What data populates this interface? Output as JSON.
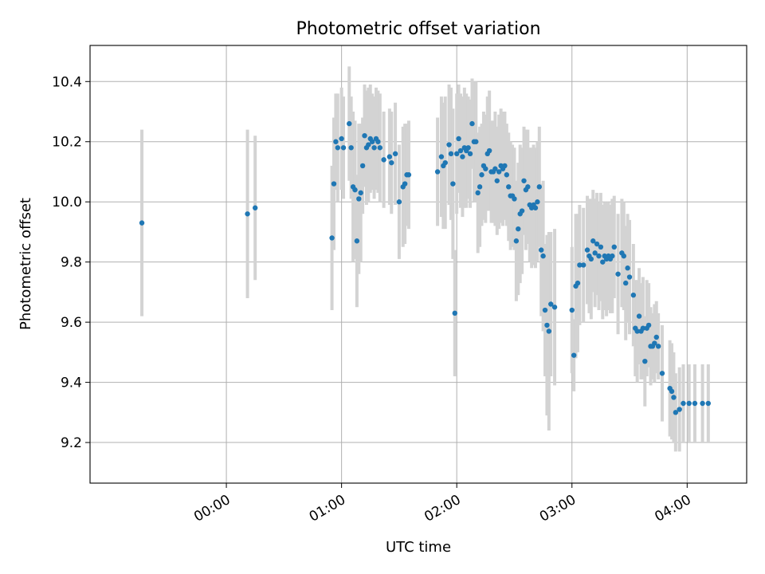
{
  "chart_data": {
    "type": "scatter",
    "title": "Photometric offset variation",
    "xlabel": "UTC time",
    "ylabel": "Photometric offset",
    "grid": true,
    "x_unit": "minutes after 00:00 UTC",
    "xlim": [
      -71,
      271
    ],
    "ylim": [
      9.065,
      10.52
    ],
    "xticks": [
      {
        "value": 0,
        "label": "00:00"
      },
      {
        "value": 60,
        "label": "01:00"
      },
      {
        "value": 120,
        "label": "02:00"
      },
      {
        "value": 180,
        "label": "03:00"
      },
      {
        "value": 240,
        "label": "04:00"
      }
    ],
    "yticks": [
      {
        "value": 9.2,
        "label": "9.2"
      },
      {
        "value": 9.4,
        "label": "9.4"
      },
      {
        "value": 9.6,
        "label": "9.6"
      },
      {
        "value": 9.8,
        "label": "9.8"
      },
      {
        "value": 10.0,
        "label": "10.0"
      },
      {
        "value": 10.2,
        "label": "10.2"
      },
      {
        "value": 10.4,
        "label": "10.4"
      }
    ],
    "series": [
      {
        "name": "offset",
        "color": "#1f77b4",
        "errorbar_color": "#d3d3d3",
        "points": [
          [
            -44,
            9.93,
            0.31
          ],
          [
            11,
            9.96,
            0.28
          ],
          [
            15,
            9.98,
            0.24
          ],
          [
            55,
            9.88,
            0.24
          ],
          [
            56,
            10.06,
            0.22
          ],
          [
            57,
            10.2,
            0.16
          ],
          [
            58,
            10.18,
            0.18
          ],
          [
            60,
            10.21,
            0.17
          ],
          [
            61,
            10.18,
            0.17
          ],
          [
            64,
            10.26,
            0.19
          ],
          [
            65,
            10.18,
            0.17
          ],
          [
            66,
            10.05,
            0.25
          ],
          [
            67,
            10.04,
            0.23
          ],
          [
            68,
            9.87,
            0.22
          ],
          [
            69,
            10.01,
            0.25
          ],
          [
            70,
            10.03,
            0.23
          ],
          [
            71,
            10.12,
            0.16
          ],
          [
            72,
            10.22,
            0.17
          ],
          [
            73,
            10.18,
            0.19
          ],
          [
            74,
            10.19,
            0.19
          ],
          [
            75,
            10.21,
            0.18
          ],
          [
            76,
            10.2,
            0.16
          ],
          [
            77,
            10.18,
            0.17
          ],
          [
            78,
            10.21,
            0.17
          ],
          [
            79,
            10.2,
            0.17
          ],
          [
            80,
            10.18,
            0.18
          ],
          [
            82,
            10.14,
            0.16
          ],
          [
            85,
            10.15,
            0.16
          ],
          [
            86,
            10.13,
            0.17
          ],
          [
            88,
            10.16,
            0.17
          ],
          [
            90,
            10.0,
            0.19
          ],
          [
            92,
            10.05,
            0.2
          ],
          [
            93,
            10.06,
            0.2
          ],
          [
            94,
            10.09,
            0.17
          ],
          [
            95,
            10.09,
            0.18
          ],
          [
            110,
            10.1,
            0.18
          ],
          [
            112,
            10.15,
            0.2
          ],
          [
            113,
            10.12,
            0.21
          ],
          [
            114,
            10.13,
            0.22
          ],
          [
            116,
            10.19,
            0.2
          ],
          [
            117,
            10.16,
            0.22
          ],
          [
            118,
            10.06,
            0.25
          ],
          [
            119,
            9.63,
            0.21
          ],
          [
            120,
            10.16,
            0.2
          ],
          [
            121,
            10.21,
            0.18
          ],
          [
            122,
            10.17,
            0.19
          ],
          [
            123,
            10.15,
            0.2
          ],
          [
            124,
            10.18,
            0.2
          ],
          [
            125,
            10.17,
            0.19
          ],
          [
            126,
            10.18,
            0.17
          ],
          [
            127,
            10.16,
            0.18
          ],
          [
            128,
            10.26,
            0.15
          ],
          [
            129,
            10.2,
            0.2
          ],
          [
            130,
            10.2,
            0.2
          ],
          [
            131,
            10.03,
            0.2
          ],
          [
            132,
            10.05,
            0.2
          ],
          [
            133,
            10.09,
            0.17
          ],
          [
            134,
            10.12,
            0.18
          ],
          [
            135,
            10.11,
            0.18
          ],
          [
            136,
            10.16,
            0.19
          ],
          [
            137,
            10.17,
            0.2
          ],
          [
            138,
            10.1,
            0.17
          ],
          [
            139,
            10.1,
            0.17
          ],
          [
            140,
            10.11,
            0.19
          ],
          [
            141,
            10.07,
            0.18
          ],
          [
            142,
            10.1,
            0.19
          ],
          [
            143,
            10.12,
            0.19
          ],
          [
            144,
            10.11,
            0.19
          ],
          [
            145,
            10.12,
            0.18
          ],
          [
            146,
            10.09,
            0.17
          ],
          [
            147,
            10.05,
            0.18
          ],
          [
            148,
            10.02,
            0.18
          ],
          [
            149,
            10.02,
            0.17
          ],
          [
            150,
            10.01,
            0.17
          ],
          [
            151,
            9.87,
            0.2
          ],
          [
            152,
            9.91,
            0.22
          ],
          [
            153,
            9.96,
            0.23
          ],
          [
            154,
            9.97,
            0.21
          ],
          [
            155,
            10.07,
            0.18
          ],
          [
            156,
            10.04,
            0.2
          ],
          [
            157,
            10.05,
            0.19
          ],
          [
            158,
            9.99,
            0.19
          ],
          [
            159,
            9.98,
            0.2
          ],
          [
            160,
            9.99,
            0.2
          ],
          [
            161,
            9.98,
            0.2
          ],
          [
            162,
            10.0,
            0.2
          ],
          [
            163,
            10.05,
            0.2
          ],
          [
            164,
            9.84,
            0.22
          ],
          [
            165,
            9.82,
            0.25
          ],
          [
            166,
            9.64,
            0.22
          ],
          [
            167,
            9.59,
            0.3
          ],
          [
            168,
            9.57,
            0.33
          ],
          [
            169,
            9.66,
            0.24
          ],
          [
            171,
            9.65,
            0.26
          ],
          [
            180,
            9.64,
            0.21
          ],
          [
            181,
            9.49,
            0.12
          ],
          [
            182,
            9.72,
            0.24
          ],
          [
            183,
            9.73,
            0.23
          ],
          [
            184,
            9.79,
            0.2
          ],
          [
            186,
            9.79,
            0.19
          ],
          [
            188,
            9.84,
            0.18
          ],
          [
            189,
            9.82,
            0.19
          ],
          [
            190,
            9.81,
            0.2
          ],
          [
            191,
            9.87,
            0.17
          ],
          [
            192,
            9.83,
            0.18
          ],
          [
            193,
            9.86,
            0.17
          ],
          [
            194,
            9.82,
            0.18
          ],
          [
            195,
            9.85,
            0.18
          ],
          [
            196,
            9.8,
            0.19
          ],
          [
            197,
            9.82,
            0.18
          ],
          [
            198,
            9.81,
            0.19
          ],
          [
            199,
            9.82,
            0.18
          ],
          [
            200,
            9.81,
            0.18
          ],
          [
            201,
            9.82,
            0.19
          ],
          [
            202,
            9.85,
            0.17
          ],
          [
            204,
            9.76,
            0.2
          ],
          [
            206,
            9.83,
            0.18
          ],
          [
            207,
            9.82,
            0.18
          ],
          [
            208,
            9.73,
            0.19
          ],
          [
            209,
            9.78,
            0.18
          ],
          [
            210,
            9.75,
            0.19
          ],
          [
            212,
            9.69,
            0.17
          ],
          [
            213,
            9.58,
            0.16
          ],
          [
            214,
            9.57,
            0.17
          ],
          [
            215,
            9.62,
            0.16
          ],
          [
            216,
            9.57,
            0.16
          ],
          [
            217,
            9.58,
            0.17
          ],
          [
            218,
            9.47,
            0.15
          ],
          [
            219,
            9.58,
            0.16
          ],
          [
            220,
            9.59,
            0.14
          ],
          [
            221,
            9.52,
            0.13
          ],
          [
            222,
            9.52,
            0.11
          ],
          [
            223,
            9.53,
            0.13
          ],
          [
            224,
            9.55,
            0.12
          ],
          [
            225,
            9.52,
            0.11
          ],
          [
            227,
            9.43,
            0.16
          ],
          [
            231,
            9.38,
            0.16
          ],
          [
            232,
            9.37,
            0.16
          ],
          [
            233,
            9.35,
            0.15
          ],
          [
            234,
            9.3,
            0.13
          ],
          [
            236,
            9.31,
            0.14
          ],
          [
            238,
            9.33,
            0.13
          ],
          [
            241,
            9.33,
            0.13
          ],
          [
            244,
            9.33,
            0.13
          ],
          [
            248,
            9.33,
            0.13
          ],
          [
            251,
            9.33,
            0.13
          ]
        ]
      }
    ]
  }
}
